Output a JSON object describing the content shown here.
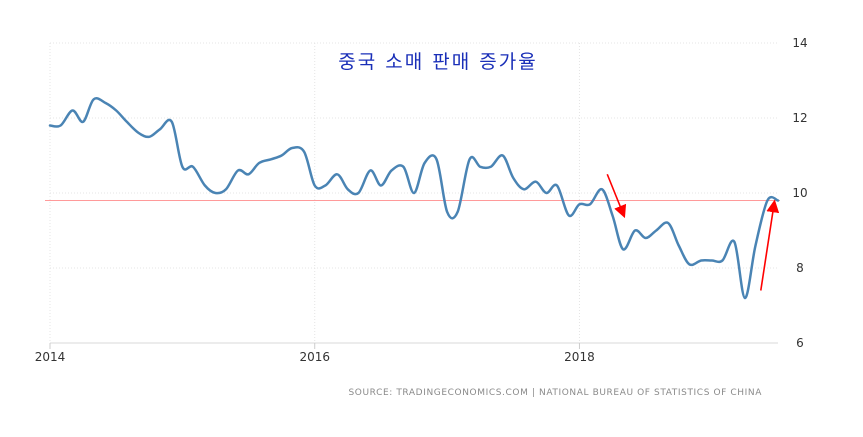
{
  "chart_data": {
    "type": "line",
    "title": "중국 소매 판매 증가율",
    "source": "SOURCE: TRADINGECONOMICS.COM  |  NATIONAL BUREAU OF STATISTICS OF CHINA",
    "xlabel": "",
    "ylabel": "",
    "xlim": [
      2014.0,
      2019.5
    ],
    "ylim": [
      6,
      14
    ],
    "y_ticks": [
      6,
      8,
      10,
      12,
      14
    ],
    "x_ticks": [
      {
        "value": 2014,
        "label": "2014"
      },
      {
        "value": 2016,
        "label": "2016"
      },
      {
        "value": 2018,
        "label": "2018"
      }
    ],
    "grid": "horizontal dotted",
    "reference_line": {
      "y": 9.8,
      "color": "#ff9a9a"
    },
    "series": [
      {
        "color": "#4a84b4",
        "x": [
          2014.0,
          2014.08,
          2014.17,
          2014.25,
          2014.33,
          2014.42,
          2014.5,
          2014.58,
          2014.67,
          2014.75,
          2014.83,
          2014.92,
          2015.0,
          2015.08,
          2015.17,
          2015.25,
          2015.33,
          2015.42,
          2015.5,
          2015.58,
          2015.67,
          2015.75,
          2015.83,
          2015.92,
          2016.0,
          2016.08,
          2016.17,
          2016.25,
          2016.33,
          2016.42,
          2016.5,
          2016.58,
          2016.67,
          2016.75,
          2016.83,
          2016.92,
          2017.0,
          2017.08,
          2017.17,
          2017.25,
          2017.33,
          2017.42,
          2017.5,
          2017.58,
          2017.67,
          2017.75,
          2017.83,
          2017.92,
          2018.0,
          2018.08,
          2018.17,
          2018.25,
          2018.33,
          2018.42,
          2018.5,
          2018.58,
          2018.67,
          2018.75,
          2018.83,
          2018.92,
          2019.0,
          2019.08,
          2019.17,
          2019.25,
          2019.33,
          2019.42,
          2019.5
        ],
        "y": [
          11.8,
          11.8,
          12.2,
          11.9,
          12.5,
          12.4,
          12.2,
          11.9,
          11.6,
          11.5,
          11.7,
          11.9,
          10.7,
          10.7,
          10.2,
          10.0,
          10.1,
          10.6,
          10.5,
          10.8,
          10.9,
          11.0,
          11.2,
          11.1,
          10.2,
          10.2,
          10.5,
          10.1,
          10.0,
          10.6,
          10.2,
          10.6,
          10.7,
          10.0,
          10.8,
          10.9,
          9.5,
          9.5,
          10.9,
          10.7,
          10.7,
          11.0,
          10.4,
          10.1,
          10.3,
          10.0,
          10.2,
          9.4,
          9.7,
          9.7,
          10.1,
          9.4,
          8.5,
          9.0,
          8.8,
          9.0,
          9.2,
          8.6,
          8.1,
          8.2,
          8.2,
          8.2,
          8.7,
          7.2,
          8.6,
          9.8,
          9.8
        ]
      }
    ],
    "annotations": [
      {
        "type": "arrow",
        "color": "#ff0000",
        "direction": "down",
        "from": [
          2018.21,
          10.5
        ],
        "to": [
          2018.33,
          9.45
        ]
      },
      {
        "type": "arrow",
        "color": "#ff0000",
        "direction": "up",
        "from": [
          2019.37,
          7.4
        ],
        "to": [
          2019.47,
          9.7
        ]
      }
    ]
  }
}
